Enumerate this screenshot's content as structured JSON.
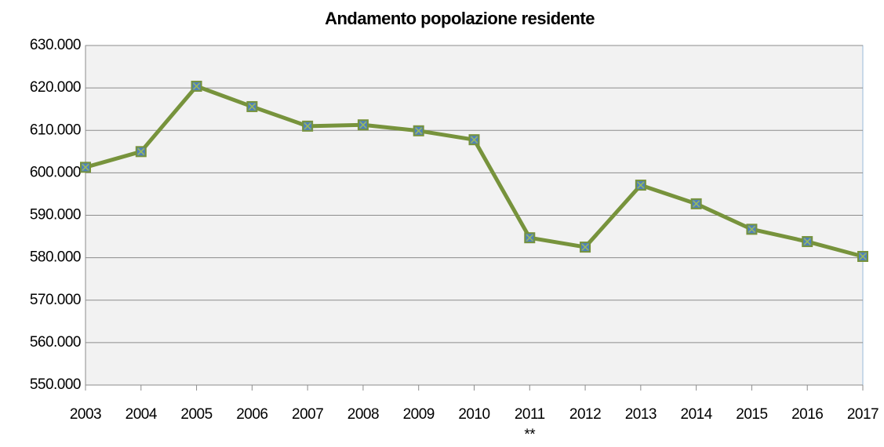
{
  "chart_data": {
    "type": "line",
    "title": "Andamento popolazione residente",
    "categories": [
      "2003",
      "2004",
      "2005",
      "2006",
      "2007",
      "2008",
      "2009",
      "2010",
      "2011",
      "2012",
      "2013",
      "2014",
      "2015",
      "2016",
      "2017"
    ],
    "x_label_notes": [
      null,
      null,
      null,
      null,
      null,
      null,
      null,
      null,
      "**",
      null,
      null,
      null,
      null,
      null,
      null
    ],
    "series": [
      {
        "color": "#77933c",
        "marker_color": "#4f81bd",
        "values": [
          601300,
          605000,
          620400,
          615600,
          611000,
          611300,
          609900,
          607800,
          584700,
          582500,
          597100,
          592700,
          586700,
          583800,
          580300
        ]
      }
    ],
    "ylim": [
      550000,
      630000
    ],
    "yticks": [
      {
        "value": 550000,
        "label": "550.000"
      },
      {
        "value": 560000,
        "label": "560.000"
      },
      {
        "value": 570000,
        "label": "570.000"
      },
      {
        "value": 580000,
        "label": "580.000"
      },
      {
        "value": 590000,
        "label": "590.000"
      },
      {
        "value": 600000,
        "label": "600.000"
      },
      {
        "value": 610000,
        "label": "610.000"
      },
      {
        "value": 620000,
        "label": "620.000"
      },
      {
        "value": 630000,
        "label": "630.000"
      }
    ],
    "grid": true
  }
}
